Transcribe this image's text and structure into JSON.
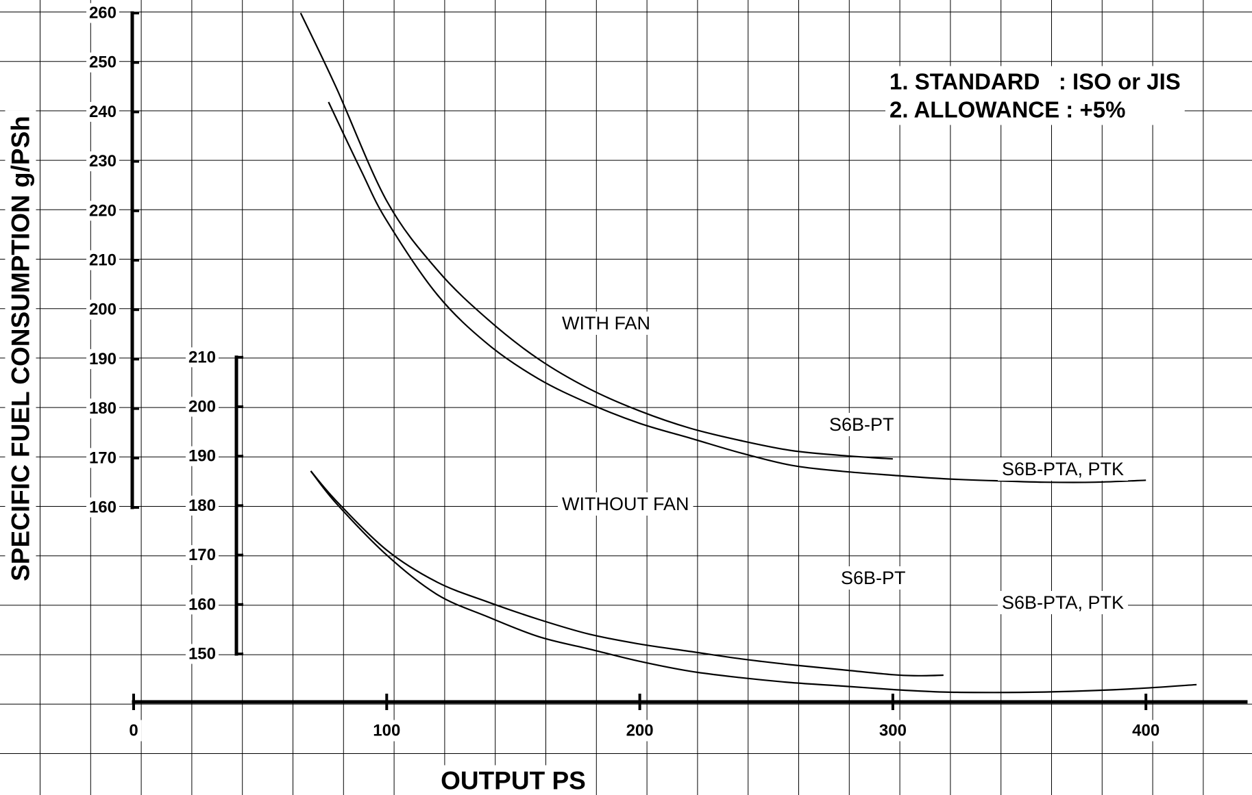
{
  "chart_data": {
    "type": "line",
    "xlabel": "OUTPUT PS",
    "ylabel": "SPECIFIC FUEL CONSUMPTION g/PSh",
    "xlim": [
      0,
      440
    ],
    "x_ticks": [
      0,
      100,
      200,
      300,
      400
    ],
    "y_axis_with_fan": {
      "ylim": [
        160,
        260
      ],
      "ticks": [
        160,
        170,
        180,
        190,
        200,
        210,
        220,
        230,
        240,
        250,
        260
      ]
    },
    "y_axis_without_fan": {
      "ylim": [
        150,
        210
      ],
      "ticks": [
        150,
        160,
        170,
        180,
        190,
        200,
        210
      ]
    },
    "grid": true,
    "groups": [
      {
        "label": "WITH FAN",
        "axis": "with_fan"
      },
      {
        "label": "WITHOUT FAN",
        "axis": "without_fan"
      }
    ],
    "series": [
      {
        "name": "S6B-PT",
        "group": "WITH FAN",
        "axis": "with_fan",
        "x": [
          66,
          80,
          100,
          120,
          140,
          160,
          180,
          200,
          220,
          240,
          260,
          280,
          300
        ],
        "y": [
          260,
          245,
          222,
          208,
          198,
          190,
          184,
          179.5,
          176,
          173.5,
          171.5,
          170.5,
          169.8
        ]
      },
      {
        "name": "S6B-PTA, PTK",
        "group": "WITH FAN",
        "axis": "with_fan",
        "x": [
          77,
          90,
          100,
          120,
          140,
          160,
          180,
          200,
          220,
          240,
          260,
          280,
          300,
          320,
          340,
          360,
          380,
          400
        ],
        "y": [
          242,
          228,
          218,
          203,
          193,
          186,
          181,
          177,
          174,
          171,
          168.5,
          167.3,
          166.5,
          165.8,
          165.4,
          165.1,
          165.1,
          165.5
        ]
      },
      {
        "name": "S6B-PT",
        "group": "WITHOUT FAN",
        "axis": "without_fan",
        "x": [
          70,
          80,
          100,
          120,
          140,
          160,
          180,
          200,
          220,
          240,
          260,
          280,
          300,
          310,
          320
        ],
        "y": [
          187,
          181,
          171,
          164.5,
          160.5,
          157,
          154,
          152,
          150.5,
          149,
          147.8,
          146.8,
          145.8,
          145.6,
          145.7
        ]
      },
      {
        "name": "S6B-PTA, PTK",
        "group": "WITHOUT FAN",
        "axis": "without_fan",
        "x": [
          70,
          80,
          100,
          120,
          140,
          160,
          180,
          200,
          220,
          240,
          260,
          280,
          300,
          320,
          340,
          360,
          380,
          400,
          420
        ],
        "y": [
          187,
          180.5,
          170,
          162,
          157.5,
          153.5,
          151,
          148.5,
          146.5,
          145.2,
          144.2,
          143.5,
          142.8,
          142.3,
          142.2,
          142.3,
          142.6,
          143.1,
          143.8
        ]
      }
    ],
    "notes": [
      "1. STANDARD   : ISO or JIS",
      "2. ALLOWANCE : +5%"
    ]
  }
}
